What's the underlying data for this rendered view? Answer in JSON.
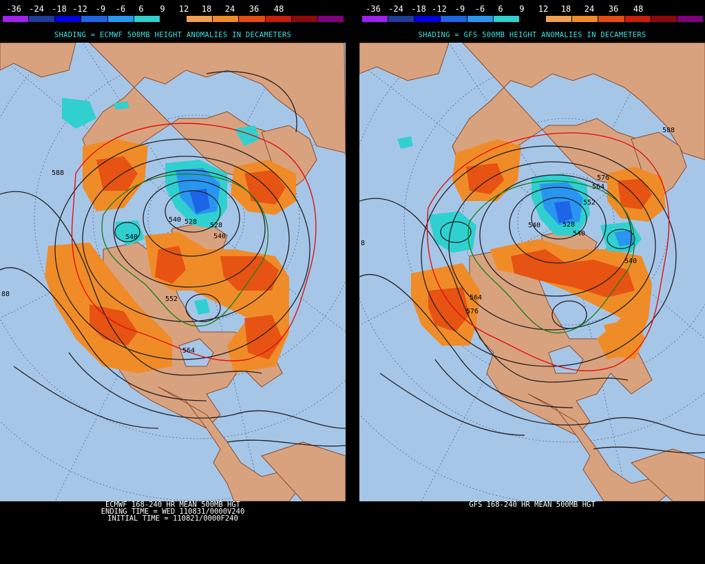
{
  "colorbar": {
    "labels": [
      "-36",
      "-24",
      "-18",
      "-12",
      "-9",
      "-6",
      "6",
      "9",
      "12",
      "18",
      "24",
      "36",
      "48"
    ],
    "colors": [
      "#a020f0",
      "#1e3c9c",
      "#0000e0",
      "#1e64e6",
      "#2896f0",
      "#30d0d0",
      "#000000",
      "#f0a050",
      "#f08c28",
      "#e64c10",
      "#c81e0a",
      "#8c0a0a",
      "#800080"
    ]
  },
  "left": {
    "subtitle": "SHADING = ECMWF 500MB HEIGHT ANOMALIES IN DECAMETERS",
    "caption": [
      "ECMWF 168-240 HR MEAN 500MB HGT",
      "ENDING TIME = WED 110831/0000V240",
      "INITIAL TIME = 110821/0000F240"
    ],
    "contour_labels": [
      "588",
      "540",
      "528",
      "528",
      "540",
      "540",
      "552",
      "564",
      "88"
    ]
  },
  "right": {
    "subtitle": "SHADING = GFS 500MB HEIGHT ANOMALIES IN DECAMETERS",
    "caption": [
      "GFS 168-240 HR MEAN 500MB HGT"
    ],
    "contour_labels": [
      "588",
      "576",
      "564",
      "552",
      "540",
      "528",
      "540",
      "564",
      "576",
      "8",
      "540"
    ]
  },
  "palette": {
    "ocean": "#a6c6e8",
    "land": "#d9a27f",
    "border": "#8a4a2a",
    "contour": "#202020",
    "line576": "#e01010",
    "line552": "#208020"
  }
}
